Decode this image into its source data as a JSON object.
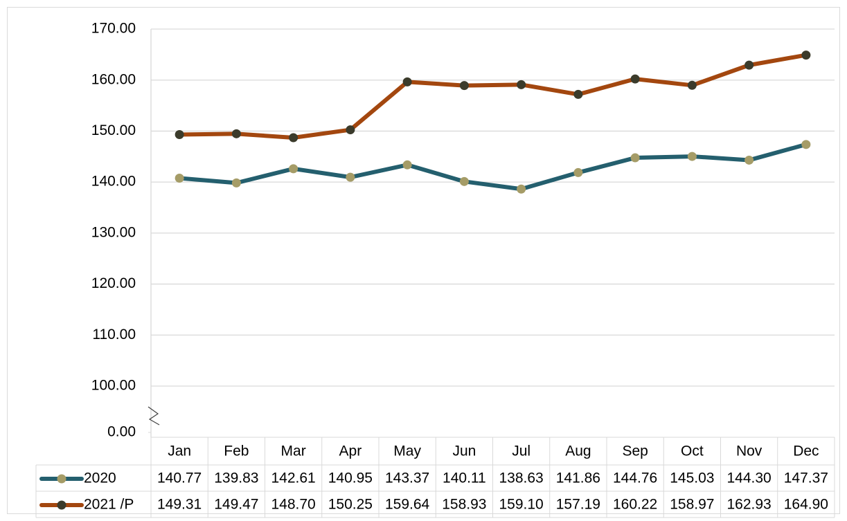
{
  "chart_data": {
    "type": "line",
    "categories": [
      "Jan",
      "Feb",
      "Mar",
      "Apr",
      "May",
      "Jun",
      "Jul",
      "Aug",
      "Sep",
      "Oct",
      "Nov",
      "Dec"
    ],
    "series": [
      {
        "name": "2020",
        "color": "#245f6e",
        "marker_color": "#a59c67",
        "values": [
          140.77,
          139.83,
          142.61,
          140.95,
          143.37,
          140.11,
          138.63,
          141.86,
          144.76,
          145.03,
          144.3,
          147.37
        ],
        "value_labels": [
          "140.77",
          "139.83",
          "142.61",
          "140.95",
          "143.37",
          "140.11",
          "138.63",
          "141.86",
          "144.76",
          "145.03",
          "144.30",
          "147.37"
        ]
      },
      {
        "name": "2021 /P",
        "color": "#a3470f",
        "marker_color": "#3b3b2b",
        "values": [
          149.31,
          149.47,
          148.7,
          150.25,
          159.64,
          158.93,
          159.1,
          157.19,
          160.22,
          158.97,
          162.93,
          164.9
        ],
        "value_labels": [
          "149.31",
          "149.47",
          "148.70",
          "150.25",
          "159.64",
          "158.93",
          "159.10",
          "157.19",
          "160.22",
          "158.97",
          "162.93",
          "164.90"
        ]
      }
    ],
    "ylim": [
      100,
      170
    ],
    "yticks": [
      {
        "value": 0,
        "label": "0.00"
      },
      {
        "value": 100,
        "label": "100.00"
      },
      {
        "value": 110,
        "label": "110.00"
      },
      {
        "value": 120,
        "label": "120.00"
      },
      {
        "value": 130,
        "label": "130.00"
      },
      {
        "value": 140,
        "label": "140.00"
      },
      {
        "value": 150,
        "label": "150.00"
      },
      {
        "value": 160,
        "label": "160.00"
      },
      {
        "value": 170,
        "label": "170.00"
      }
    ],
    "grid": true,
    "axis_break": true,
    "data_table": true
  }
}
